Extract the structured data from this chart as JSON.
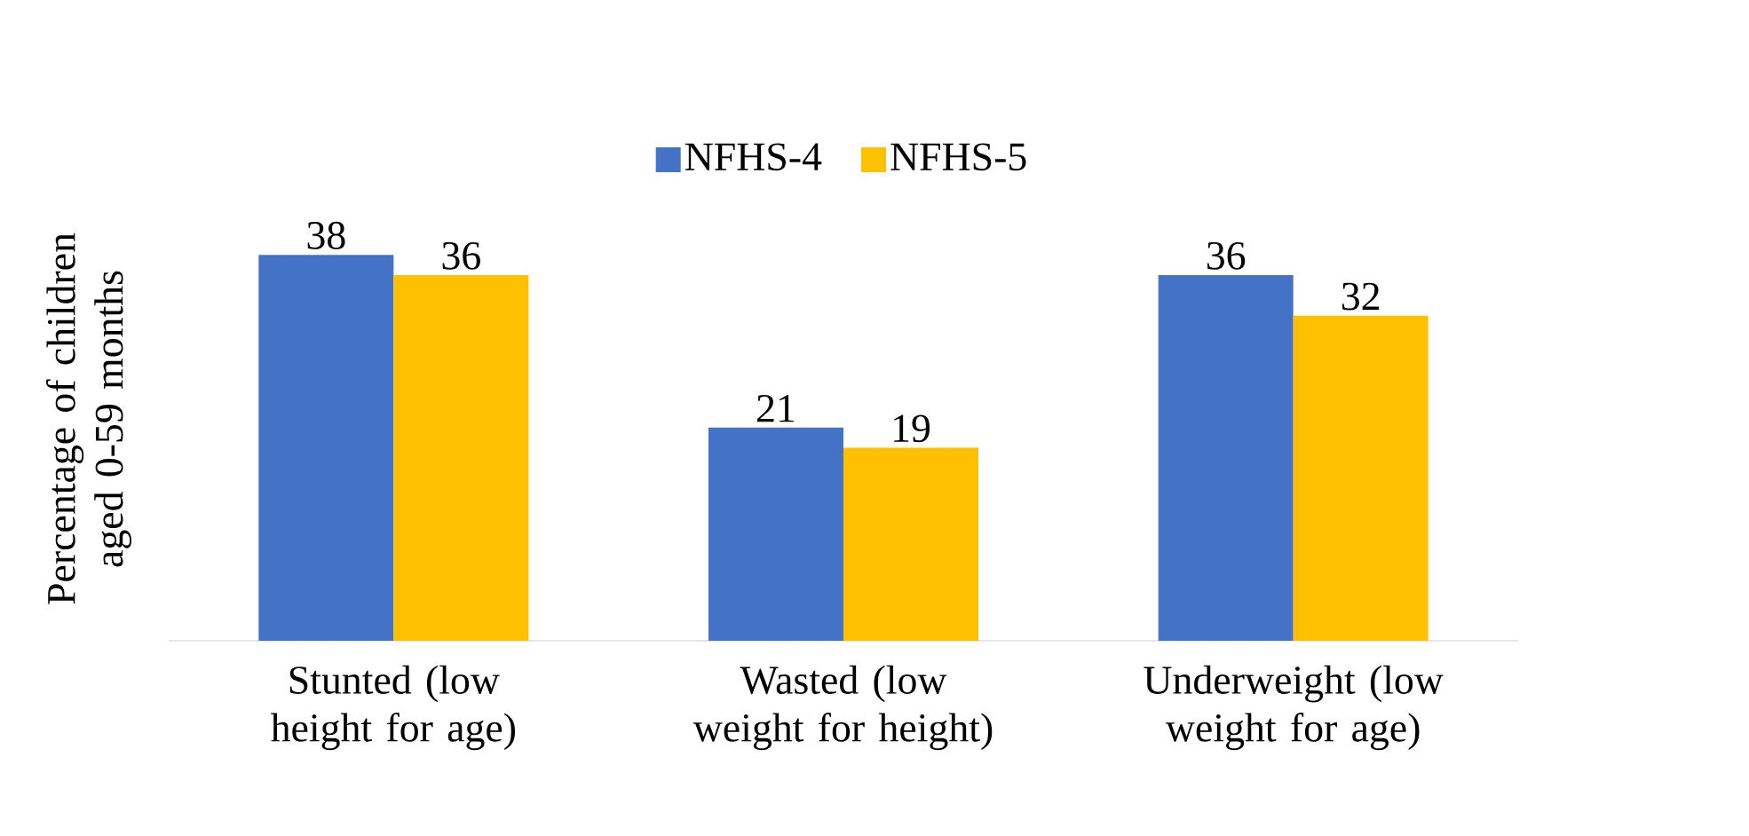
{
  "chart_data": {
    "type": "bar",
    "ylabel": "Percentage of children aged 0-59 months",
    "categories": [
      "Stunted (low height for age)",
      "Wasted (low weight for height)",
      "Underweight (low weight for age)"
    ],
    "series": [
      {
        "name": "NFHS-4",
        "color": "#4472c4",
        "values": [
          38,
          21,
          36
        ]
      },
      {
        "name": "NFHS-5",
        "color": "#ffc000",
        "values": [
          36,
          19,
          32
        ]
      }
    ],
    "legend": "top",
    "data_labels": true
  }
}
